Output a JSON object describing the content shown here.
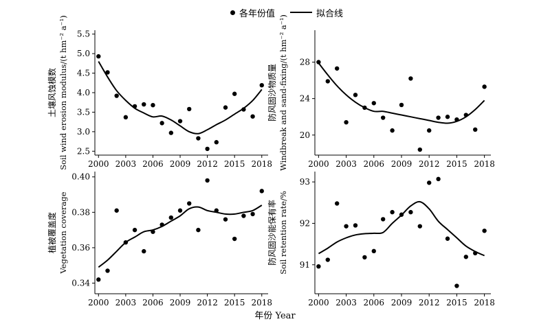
{
  "legend": {
    "points_label": "各年份值",
    "line_label": "拟合线"
  },
  "figure": {
    "xlabel": "年份 Year"
  },
  "chart_data": [
    {
      "type": "scatter",
      "ylabel": "土壤风蚀模数",
      "ylabel2": "Soil wind erosion modulus/(t hm⁻² a⁻¹)",
      "xlim": [
        1999.6,
        2018.7
      ],
      "ylim": [
        2.4,
        5.6
      ],
      "xticks": [
        2000,
        2003,
        2006,
        2009,
        2012,
        2015,
        2018
      ],
      "yticks": [
        2.5,
        3.0,
        3.5,
        4.0,
        4.5,
        5.0,
        5.5
      ],
      "ytick_labels": [
        "2.5",
        "3.0",
        "3.5",
        "4.0",
        "4.5",
        "5.0",
        "5.5"
      ],
      "points": {
        "x": [
          2000,
          2001,
          2002,
          2003,
          2004,
          2005,
          2006,
          2007,
          2008,
          2009,
          2010,
          2011,
          2012,
          2013,
          2014,
          2015,
          2016,
          2017,
          2018
        ],
        "y": [
          4.93,
          4.52,
          3.92,
          3.37,
          3.65,
          3.7,
          3.68,
          3.22,
          2.97,
          3.27,
          3.58,
          2.83,
          2.56,
          2.73,
          3.62,
          3.97,
          3.57,
          3.39,
          4.19
        ]
      },
      "fit": {
        "x": [
          2000,
          2001,
          2002,
          2003,
          2004,
          2005,
          2006,
          2007,
          2008,
          2009,
          2010,
          2011,
          2012,
          2013,
          2014,
          2015,
          2016,
          2017,
          2018
        ],
        "y": [
          4.8,
          4.4,
          4.05,
          3.8,
          3.6,
          3.48,
          3.38,
          3.4,
          3.3,
          3.15,
          3.0,
          2.95,
          3.05,
          3.18,
          3.3,
          3.45,
          3.6,
          3.8,
          4.08
        ]
      }
    },
    {
      "type": "scatter",
      "ylabel": "防风固沙物质量",
      "ylabel2": "Windbreak and sand-fixing/(t hm⁻² a⁻¹)",
      "xlim": [
        1999.6,
        2018.7
      ],
      "ylim": [
        17.8,
        31.5
      ],
      "xticks": [
        2000,
        2003,
        2006,
        2009,
        2012,
        2015,
        2018
      ],
      "yticks": [
        20,
        24,
        28
      ],
      "ytick_labels": [
        "20",
        "24",
        "28"
      ],
      "points": {
        "x": [
          2000,
          2001,
          2002,
          2003,
          2004,
          2005,
          2006,
          2007,
          2008,
          2009,
          2010,
          2011,
          2012,
          2013,
          2014,
          2015,
          2016,
          2017,
          2018
        ],
        "y": [
          28.0,
          25.9,
          27.3,
          21.4,
          24.4,
          23.0,
          23.5,
          21.9,
          20.5,
          23.3,
          26.2,
          18.4,
          20.5,
          21.9,
          22.0,
          21.7,
          22.2,
          20.6,
          25.3
        ]
      },
      "fit": {
        "x": [
          2000,
          2001,
          2002,
          2003,
          2004,
          2005,
          2006,
          2007,
          2008,
          2009,
          2010,
          2011,
          2012,
          2013,
          2014,
          2015,
          2016,
          2017,
          2018
        ],
        "y": [
          27.9,
          26.6,
          25.4,
          24.4,
          23.6,
          23.0,
          22.6,
          22.6,
          22.4,
          22.2,
          22.0,
          21.8,
          21.6,
          21.4,
          21.3,
          21.5,
          22.0,
          22.8,
          23.8
        ]
      }
    },
    {
      "type": "scatter",
      "ylabel": "植被覆盖度",
      "ylabel2": "Vegetation coverage",
      "xlim": [
        1999.6,
        2018.7
      ],
      "ylim": [
        0.334,
        0.403
      ],
      "xticks": [
        2000,
        2003,
        2006,
        2009,
        2012,
        2015,
        2018
      ],
      "yticks": [
        0.34,
        0.36,
        0.38,
        0.4
      ],
      "ytick_labels": [
        "0.34",
        "0.36",
        "0.38",
        "0.40"
      ],
      "points": {
        "x": [
          2000,
          2001,
          2002,
          2003,
          2004,
          2005,
          2006,
          2007,
          2008,
          2009,
          2010,
          2011,
          2012,
          2013,
          2014,
          2015,
          2016,
          2017,
          2018
        ],
        "y": [
          0.342,
          0.347,
          0.381,
          0.363,
          0.37,
          0.358,
          0.369,
          0.373,
          0.377,
          0.381,
          0.385,
          0.37,
          0.398,
          0.381,
          0.376,
          0.365,
          0.378,
          0.379,
          0.392
        ]
      },
      "fit": {
        "x": [
          2000,
          2001,
          2002,
          2003,
          2004,
          2005,
          2006,
          2007,
          2008,
          2009,
          2010,
          2011,
          2012,
          2013,
          2014,
          2015,
          2016,
          2017,
          2018
        ],
        "y": [
          0.349,
          0.353,
          0.358,
          0.363,
          0.366,
          0.369,
          0.37,
          0.372,
          0.375,
          0.378,
          0.382,
          0.383,
          0.381,
          0.38,
          0.379,
          0.379,
          0.38,
          0.381,
          0.384
        ]
      }
    },
    {
      "type": "scatter",
      "ylabel": "防风固沙能保有率",
      "ylabel2": "Soil retention rate/%",
      "xlim": [
        1999.6,
        2018.7
      ],
      "ylim": [
        90.3,
        93.25
      ],
      "xticks": [
        2000,
        2003,
        2006,
        2009,
        2012,
        2015,
        2018
      ],
      "yticks": [
        91,
        92,
        93
      ],
      "ytick_labels": [
        "91",
        "92",
        "93"
      ],
      "points": {
        "x": [
          2000,
          2001,
          2002,
          2003,
          2004,
          2005,
          2006,
          2007,
          2008,
          2009,
          2010,
          2011,
          2012,
          2013,
          2014,
          2015,
          2016,
          2017,
          2018
        ],
        "y": [
          90.96,
          91.12,
          92.48,
          91.93,
          91.95,
          91.18,
          91.33,
          92.1,
          92.27,
          92.21,
          92.27,
          91.93,
          92.98,
          93.07,
          91.63,
          90.49,
          91.19,
          91.28,
          91.82
        ]
      },
      "fit": {
        "x": [
          2000,
          2001,
          2002,
          2003,
          2004,
          2005,
          2006,
          2007,
          2008,
          2009,
          2010,
          2011,
          2012,
          2013,
          2014,
          2015,
          2016,
          2017,
          2018
        ],
        "y": [
          91.27,
          91.4,
          91.55,
          91.65,
          91.72,
          91.75,
          91.76,
          91.78,
          92.0,
          92.2,
          92.42,
          92.52,
          92.35,
          92.05,
          91.85,
          91.65,
          91.45,
          91.32,
          91.22
        ]
      }
    }
  ]
}
